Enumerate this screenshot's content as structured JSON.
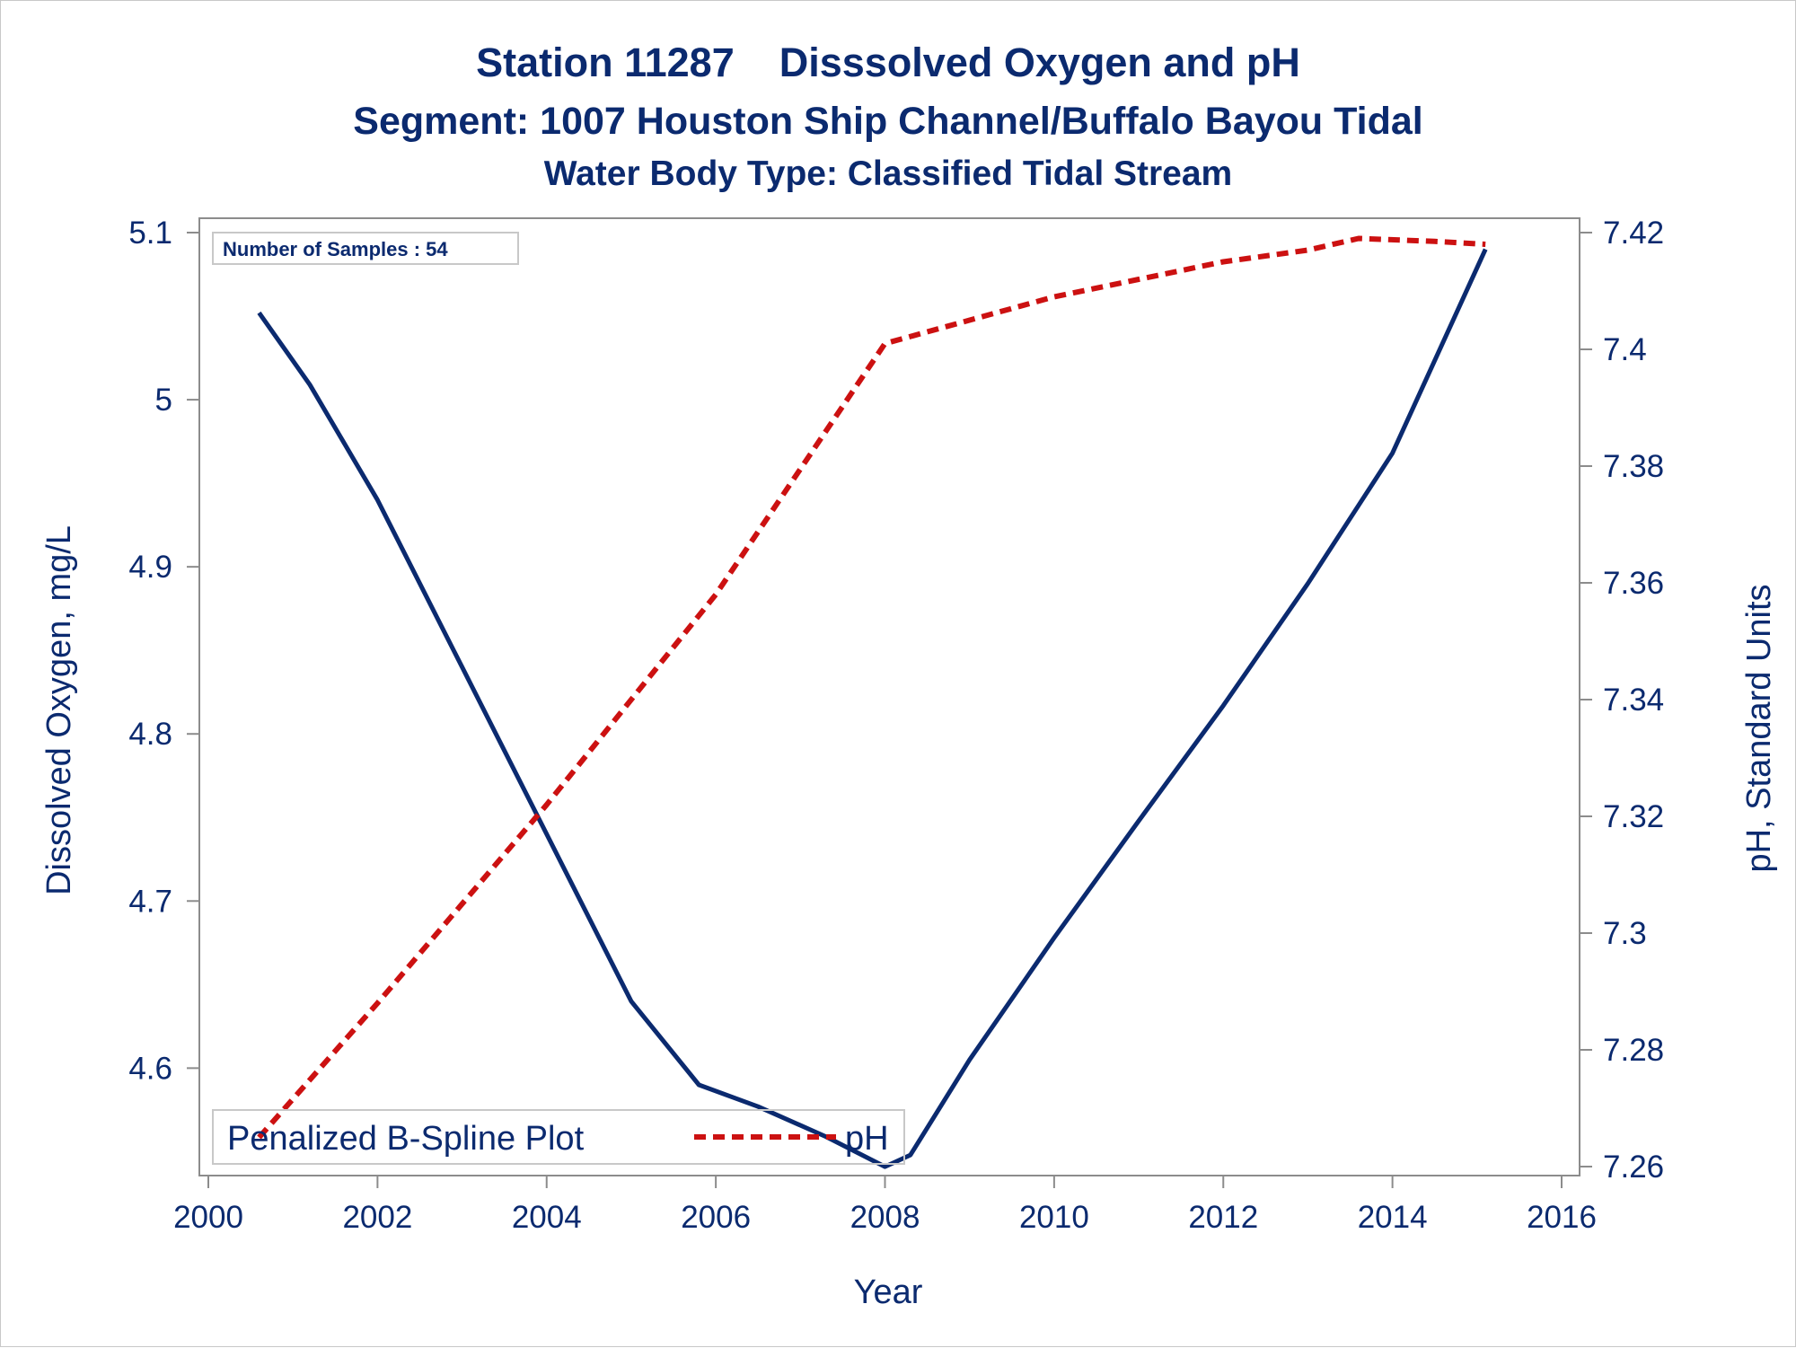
{
  "chart_data": {
    "type": "line",
    "title": "Station 11287    Disssolved Oxygen and pH",
    "subtitle": "Segment: 1007  Houston Ship Channel/Buffalo Bayou Tidal",
    "subtitle2": "Water Body Type: Classified Tidal Stream",
    "xlabel": "Year",
    "ylabel": "Dissolved Oxygen, mg/L",
    "y2label": "pH, Standard Units",
    "xlim": [
      2000,
      2016
    ],
    "ylim": [
      4.54,
      5.1
    ],
    "y2lim": [
      7.26,
      7.42
    ],
    "x_ticks": [
      "2000",
      "2002",
      "2004",
      "2006",
      "2008",
      "2010",
      "2012",
      "2014",
      "2016"
    ],
    "y_ticks": [
      "4.6",
      "4.7",
      "4.8",
      "4.9",
      "5",
      "5.1"
    ],
    "y2_ticks": [
      "7.26",
      "7.28",
      "7.3",
      "7.32",
      "7.34",
      "7.36",
      "7.38",
      "7.4",
      "7.42"
    ],
    "inset_text": "Number of Samples : 54",
    "legend": {
      "title": "Penalized B-Spline Plot",
      "placement": "bottom-left",
      "entries": [
        "pH"
      ]
    },
    "grid": false,
    "series": [
      {
        "axis": "left",
        "color": "#0b2a6f",
        "style": "solid",
        "x": [
          2000.6,
          2001.2,
          2002.0,
          2003.0,
          2004.0,
          2005.0,
          2005.8,
          2006.5,
          2007.3,
          2008.0,
          2008.3,
          2009.0,
          2010.0,
          2011.0,
          2012.0,
          2013.0,
          2014.0,
          2015.1
        ],
        "y": [
          5.052,
          5.009,
          4.94,
          4.84,
          4.74,
          4.64,
          4.59,
          4.577,
          4.559,
          4.541,
          4.548,
          4.605,
          4.678,
          4.748,
          4.817,
          4.89,
          4.968,
          5.09
        ]
      },
      {
        "name": "pH",
        "axis": "right",
        "color": "#cc1111",
        "style": "dashed",
        "x": [
          2000.6,
          2002.0,
          2004.0,
          2006.0,
          2008.0,
          2009.0,
          2010.0,
          2011.0,
          2012.0,
          2013.0,
          2013.6,
          2014.5,
          2015.1
        ],
        "y": [
          7.265,
          7.288,
          7.322,
          7.358,
          7.401,
          7.405,
          7.409,
          7.412,
          7.415,
          7.417,
          7.419,
          7.4185,
          7.418
        ]
      }
    ]
  }
}
